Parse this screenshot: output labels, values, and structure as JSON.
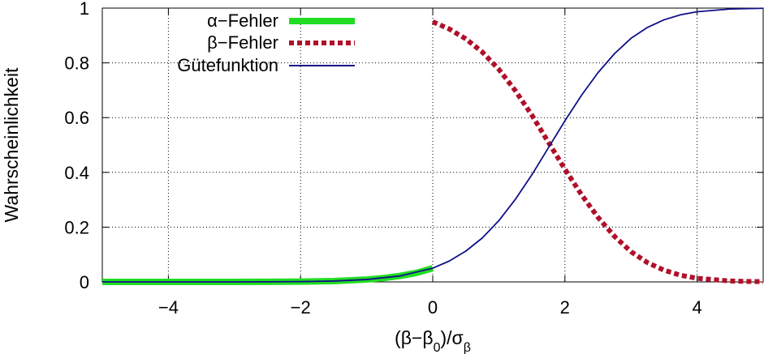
{
  "chart_data": {
    "type": "line",
    "xlabel": "(β−β0)/σβ",
    "xlabel_parts": {
      "prefix": "(β−β",
      "sub0": "0",
      "middle": ")/σ",
      "subBeta": "β"
    },
    "ylabel": "Wahrscheinlichkeit",
    "xlim": [
      -5,
      5
    ],
    "ylim": [
      0,
      1
    ],
    "grid": true,
    "legend_position": "top-left",
    "x_ticks": [
      {
        "value": -4,
        "label": "−4"
      },
      {
        "value": -2,
        "label": "−2"
      },
      {
        "value": 0,
        "label": "0"
      },
      {
        "value": 2,
        "label": "2"
      },
      {
        "value": 4,
        "label": "4"
      }
    ],
    "y_ticks": [
      {
        "value": 0,
        "label": "0"
      },
      {
        "value": 0.2,
        "label": "0.2"
      },
      {
        "value": 0.4,
        "label": "0.4"
      },
      {
        "value": 0.6,
        "label": "0.6"
      },
      {
        "value": 0.8,
        "label": "0.8"
      },
      {
        "value": 1,
        "label": "1"
      }
    ],
    "series": [
      {
        "name": "α−Fehler",
        "color": "#22dd22",
        "style": "thick-solid",
        "x": [
          -5,
          -4,
          -3,
          -2.5,
          -2,
          -1.5,
          -1,
          -0.75,
          -0.5,
          -0.25,
          0
        ],
        "y": [
          0.0,
          0.0,
          0.0001,
          0.0003,
          0.001,
          0.0031,
          0.0087,
          0.0139,
          0.0216,
          0.0327,
          0.05
        ]
      },
      {
        "name": "β−Fehler",
        "color": "#b0102a",
        "style": "dotted",
        "x": [
          0,
          0.25,
          0.5,
          0.75,
          1,
          1.25,
          1.5,
          1.75,
          2,
          2.25,
          2.5,
          2.75,
          3,
          3.25,
          3.5,
          3.75,
          4,
          4.5,
          5
        ],
        "y": [
          0.95,
          0.9238,
          0.8876,
          0.8395,
          0.7764,
          0.6985,
          0.6089,
          0.5101,
          0.4117,
          0.3188,
          0.2359,
          0.1665,
          0.1103,
          0.0703,
          0.0427,
          0.0244,
          0.0133,
          0.0033,
          0.0007
        ]
      },
      {
        "name": "Gütefunktion",
        "color": "#101088",
        "style": "thin-solid",
        "x": [
          -5,
          -4,
          -3,
          -2.5,
          -2,
          -1.5,
          -1,
          -0.5,
          0,
          0.25,
          0.5,
          0.75,
          1,
          1.25,
          1.5,
          1.75,
          2,
          2.25,
          2.5,
          2.75,
          3,
          3.25,
          3.5,
          3.75,
          4,
          4.5,
          5
        ],
        "y": [
          0.0,
          0.0,
          0.0001,
          0.0003,
          0.001,
          0.0031,
          0.0087,
          0.0216,
          0.05,
          0.0762,
          0.1124,
          0.1605,
          0.2236,
          0.3015,
          0.3911,
          0.4899,
          0.5883,
          0.6812,
          0.7641,
          0.8335,
          0.8897,
          0.9297,
          0.9573,
          0.9756,
          0.9867,
          0.9967,
          0.9993
        ]
      }
    ]
  }
}
